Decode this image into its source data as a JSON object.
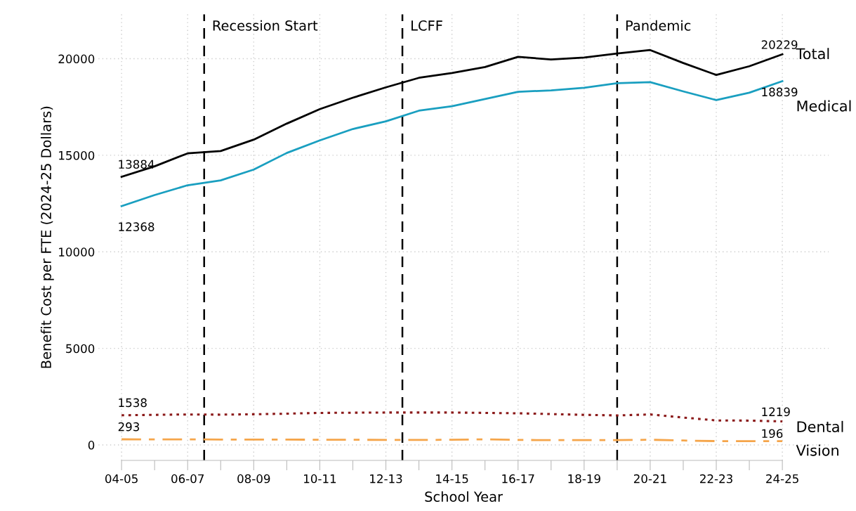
{
  "chart_data": {
    "type": "line",
    "xlabel": "School Year",
    "ylabel": "Benefit Cost per FTE (2024-25 Dollars)",
    "categories": [
      "04-05",
      null,
      "06-07",
      null,
      "08-09",
      null,
      "10-11",
      null,
      "12-13",
      null,
      "14-15",
      null,
      "16-17",
      null,
      "18-19",
      null,
      "20-21",
      null,
      "22-23",
      null,
      "24-25"
    ],
    "series": [
      {
        "name": "Total",
        "color": "#000000",
        "line_style": "solid",
        "values": [
          13884,
          14430,
          15100,
          15220,
          15810,
          16640,
          17390,
          17980,
          18520,
          19010,
          19260,
          19570,
          20100,
          19960,
          20060,
          20270,
          20450,
          19780,
          19160,
          19610,
          20229
        ],
        "value_labels": [
          "13884",
          null,
          null,
          null,
          null,
          null,
          null,
          null,
          null,
          null,
          null,
          null,
          null,
          null,
          null,
          null,
          null,
          null,
          null,
          null,
          "20229"
        ]
      },
      {
        "name": "Medical",
        "color": "#1a9fc0",
        "line_style": "solid",
        "values": [
          12368,
          12940,
          13450,
          13700,
          14260,
          15120,
          15770,
          16360,
          16760,
          17310,
          17540,
          17910,
          18290,
          18360,
          18500,
          18730,
          18790,
          18310,
          17860,
          18240,
          18839
        ],
        "value_labels": [
          "12368",
          null,
          null,
          null,
          null,
          null,
          null,
          null,
          null,
          null,
          null,
          null,
          null,
          null,
          null,
          null,
          null,
          null,
          null,
          null,
          "18839"
        ]
      },
      {
        "name": "Dental",
        "color": "#8b1a1a",
        "line_style": "dotted",
        "values": [
          1538,
          1560,
          1580,
          1570,
          1590,
          1620,
          1660,
          1670,
          1680,
          1680,
          1680,
          1660,
          1640,
          1600,
          1560,
          1530,
          1580,
          1420,
          1270,
          1260,
          1219
        ],
        "value_labels": [
          "1538",
          null,
          null,
          null,
          null,
          null,
          null,
          null,
          null,
          null,
          null,
          null,
          null,
          null,
          null,
          null,
          null,
          null,
          null,
          null,
          "1219"
        ]
      },
      {
        "name": "Vision",
        "color": "#f5a54a",
        "line_style": "dashed",
        "values": [
          293,
          290,
          290,
          280,
          280,
          280,
          270,
          270,
          260,
          260,
          270,
          290,
          260,
          250,
          250,
          250,
          270,
          230,
          200,
          200,
          196
        ],
        "value_labels": [
          "293",
          null,
          null,
          null,
          null,
          null,
          null,
          null,
          null,
          null,
          null,
          null,
          null,
          null,
          null,
          null,
          null,
          null,
          null,
          null,
          "196"
        ]
      }
    ],
    "ylim": [
      -800,
      22300
    ],
    "yticks": [
      0,
      5000,
      10000,
      15000,
      20000
    ],
    "grid": true,
    "legend": false,
    "marker": "none",
    "annotations": [
      "Recession Start",
      "LCFF",
      "Pandemic"
    ]
  }
}
